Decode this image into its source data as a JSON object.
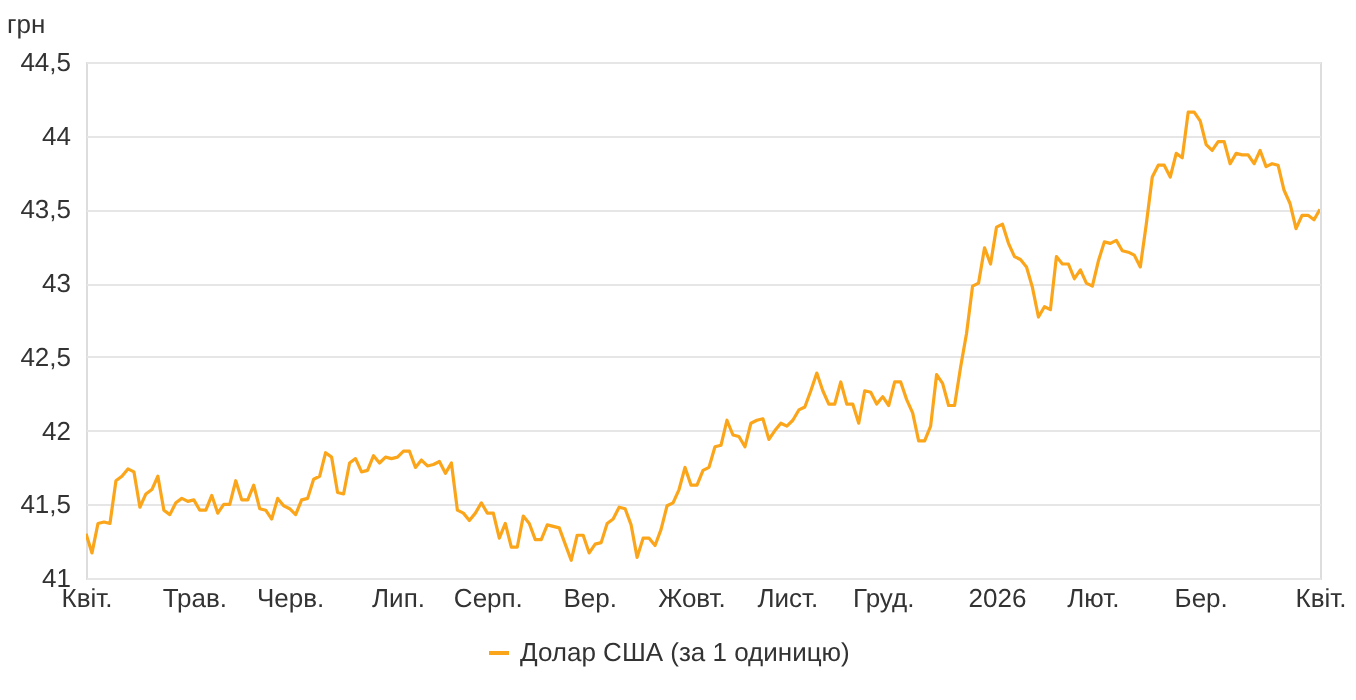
{
  "chart_data": {
    "type": "line",
    "ylabel": "грн",
    "legend": "bottom",
    "grid": "y",
    "line_style": "solid",
    "marker": "none",
    "ylim": [
      41,
      44.5
    ],
    "yticks": [
      {
        "value": 41,
        "label": "41"
      },
      {
        "value": 41.5,
        "label": "41,5"
      },
      {
        "value": 42,
        "label": "42"
      },
      {
        "value": 42.5,
        "label": "42,5"
      },
      {
        "value": 43,
        "label": "43"
      },
      {
        "value": 43.5,
        "label": "43,5"
      },
      {
        "value": 44,
        "label": "44"
      },
      {
        "value": 44.5,
        "label": "44,5"
      }
    ],
    "categories": [
      "Квіт.",
      null,
      null,
      null,
      null,
      null,
      null,
      null,
      null,
      null,
      null,
      null,
      null,
      null,
      null,
      null,
      null,
      null,
      "Трав.",
      null,
      null,
      null,
      null,
      null,
      null,
      null,
      null,
      null,
      null,
      null,
      null,
      null,
      null,
      null,
      "Черв.",
      null,
      null,
      null,
      null,
      null,
      null,
      null,
      null,
      null,
      null,
      null,
      null,
      null,
      null,
      null,
      null,
      null,
      "Лип.",
      null,
      null,
      null,
      null,
      null,
      null,
      null,
      null,
      null,
      null,
      null,
      null,
      null,
      null,
      "Серп.",
      null,
      null,
      null,
      null,
      null,
      null,
      null,
      null,
      null,
      null,
      null,
      null,
      null,
      null,
      null,
      null,
      "Вер.",
      null,
      null,
      null,
      null,
      null,
      null,
      null,
      null,
      null,
      null,
      null,
      null,
      null,
      null,
      null,
      null,
      "Жовт.",
      null,
      null,
      null,
      null,
      null,
      null,
      null,
      null,
      null,
      null,
      null,
      null,
      null,
      null,
      null,
      "Лист.",
      null,
      null,
      null,
      null,
      null,
      null,
      null,
      null,
      null,
      null,
      null,
      null,
      null,
      null,
      null,
      "Груд.",
      null,
      null,
      null,
      null,
      null,
      null,
      null,
      null,
      null,
      null,
      null,
      null,
      null,
      null,
      null,
      null,
      null,
      null,
      "2026",
      null,
      null,
      null,
      null,
      null,
      null,
      null,
      null,
      null,
      null,
      null,
      null,
      null,
      null,
      null,
      "Лют.",
      null,
      null,
      null,
      null,
      null,
      null,
      null,
      null,
      null,
      null,
      null,
      null,
      null,
      null,
      null,
      null,
      null,
      "Бер.",
      null,
      null,
      null,
      null,
      null,
      null,
      null,
      null,
      null,
      null,
      null,
      null,
      null,
      null,
      null,
      null,
      null,
      null,
      null,
      "Квіт."
    ],
    "series": [
      {
        "name": "Долар США (за 1 одиницю)",
        "color": "#fba51a",
        "values": [
          41.3,
          41.17,
          41.37,
          41.38,
          41.37,
          41.66,
          41.69,
          41.74,
          41.72,
          41.48,
          41.57,
          41.6,
          41.69,
          41.46,
          41.43,
          41.51,
          41.54,
          41.52,
          41.53,
          41.46,
          41.46,
          41.56,
          41.44,
          41.5,
          41.5,
          41.66,
          41.53,
          41.53,
          41.63,
          41.47,
          41.46,
          41.4,
          41.54,
          41.49,
          41.47,
          41.43,
          41.53,
          41.54,
          41.67,
          41.69,
          41.85,
          41.82,
          41.58,
          41.57,
          41.78,
          41.81,
          41.72,
          41.73,
          41.83,
          41.78,
          41.82,
          41.81,
          41.82,
          41.86,
          41.86,
          41.75,
          41.8,
          41.76,
          41.77,
          41.79,
          41.71,
          41.78,
          41.46,
          41.44,
          41.39,
          41.44,
          41.51,
          41.44,
          41.44,
          41.27,
          41.37,
          41.21,
          41.21,
          41.42,
          41.37,
          41.26,
          41.26,
          41.36,
          41.35,
          41.34,
          41.23,
          41.12,
          41.29,
          41.29,
          41.17,
          41.23,
          41.24,
          41.37,
          41.4,
          41.48,
          41.47,
          41.36,
          41.14,
          41.27,
          41.27,
          41.22,
          41.33,
          41.49,
          41.51,
          41.6,
          41.75,
          41.63,
          41.63,
          41.73,
          41.75,
          41.89,
          41.9,
          42.07,
          41.97,
          41.96,
          41.89,
          42.05,
          42.07,
          42.08,
          41.94,
          42.0,
          42.05,
          42.03,
          42.07,
          42.14,
          42.16,
          42.27,
          42.39,
          42.27,
          42.18,
          42.18,
          42.33,
          42.18,
          42.18,
          42.05,
          42.27,
          42.26,
          42.18,
          42.23,
          42.17,
          42.33,
          42.33,
          42.21,
          42.12,
          41.93,
          41.93,
          42.03,
          42.38,
          42.32,
          42.17,
          42.17,
          42.43,
          42.66,
          42.98,
          43.0,
          43.24,
          43.13,
          43.38,
          43.4,
          43.27,
          43.18,
          43.16,
          43.11,
          42.97,
          42.77,
          42.84,
          42.82,
          43.18,
          43.13,
          43.13,
          43.03,
          43.09,
          43.0,
          42.98,
          43.15,
          43.28,
          43.27,
          43.29,
          43.22,
          43.21,
          43.19,
          43.11,
          43.4,
          43.72,
          43.8,
          43.8,
          43.72,
          43.88,
          43.85,
          44.16,
          44.16,
          44.1,
          43.94,
          43.9,
          43.96,
          43.96,
          43.81,
          43.88,
          43.87,
          43.87,
          43.81,
          43.9,
          43.79,
          43.81,
          43.8,
          43.63,
          43.54,
          43.37,
          43.46,
          43.46,
          43.43,
          43.5
        ]
      }
    ]
  }
}
